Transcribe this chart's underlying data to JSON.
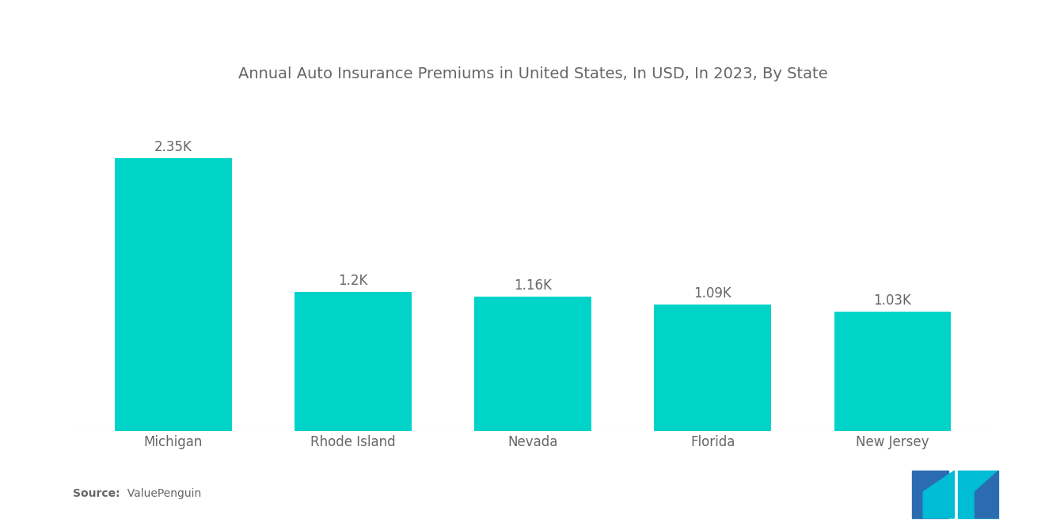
{
  "title": "Annual Auto Insurance Premiums in United States, In USD, In 2023, By State",
  "categories": [
    "Michigan",
    "Rhode Island",
    "Nevada",
    "Florida",
    "New Jersey"
  ],
  "values": [
    2350,
    1200,
    1160,
    1090,
    1030
  ],
  "labels": [
    "2.35K",
    "1.2K",
    "1.16K",
    "1.09K",
    "1.03K"
  ],
  "bar_color": "#00D4C8",
  "background_color": "#ffffff",
  "title_fontsize": 14,
  "label_fontsize": 12,
  "xlabel_fontsize": 12,
  "source_bold": "Source:",
  "source_normal": "  ValuePenguin",
  "ylim": [
    0,
    2900
  ],
  "bar_width": 0.65,
  "logo_blue": "#2B6CB0",
  "logo_teal": "#00BCD4"
}
